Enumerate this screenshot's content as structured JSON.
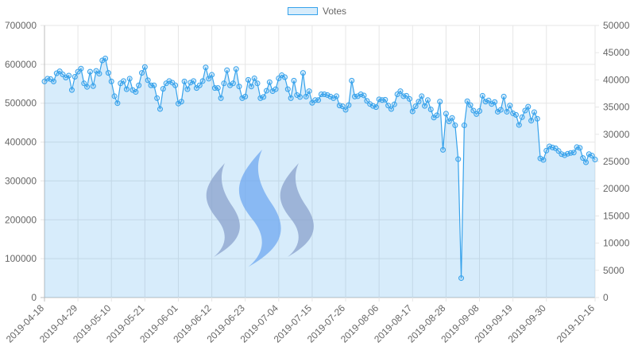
{
  "legend": {
    "label": "Votes",
    "border_color": "#36a2eb",
    "fill_color": "rgba(54,162,235,0.2)"
  },
  "watermark": {
    "icon": "steem-logo-icon",
    "colors": [
      "#8aa2cc",
      "#6fa8f0",
      "#8aa2cc"
    ]
  },
  "chart_data": {
    "type": "area",
    "title": "",
    "xlabel": "",
    "ylabel": "",
    "legend_position": "top-center",
    "grid": true,
    "series": [
      {
        "name": "Votes",
        "color": "#36a2eb",
        "values": [
          556000,
          563000,
          562000,
          556000,
          577000,
          582000,
          574000,
          566000,
          571000,
          534000,
          568000,
          581000,
          589000,
          551000,
          542000,
          581000,
          544000,
          583000,
          576000,
          610000,
          615000,
          578000,
          556000,
          518000,
          500000,
          551000,
          557000,
          536000,
          563000,
          534000,
          529000,
          546000,
          578000,
          593000,
          559000,
          546000,
          546000,
          513000,
          485000,
          537000,
          551000,
          557000,
          553000,
          546000,
          499000,
          504000,
          556000,
          536000,
          553000,
          557000,
          539000,
          546000,
          557000,
          592000,
          563000,
          573000,
          539000,
          539000,
          513000,
          551000,
          585000,
          546000,
          551000,
          588000,
          543000,
          513000,
          517000,
          560000,
          543000,
          564000,
          551000,
          513000,
          516000,
          532000,
          554000,
          531000,
          536000,
          564000,
          572000,
          567000,
          536000,
          513000,
          558000,
          521000,
          516000,
          578000,
          517000,
          531000,
          501000,
          508000,
          508000,
          523000,
          523000,
          521000,
          517000,
          513000,
          518000,
          494000,
          492000,
          483000,
          495000,
          558000,
          517000,
          518000,
          523000,
          520000,
          506000,
          498000,
          493000,
          490000,
          510000,
          508000,
          509000,
          494000,
          485000,
          497000,
          523000,
          531000,
          518000,
          519000,
          511000,
          479000,
          492000,
          504000,
          518000,
          493000,
          508000,
          484000,
          463000,
          469000,
          504000,
          380000,
          473000,
          453000,
          462000,
          443000,
          356000,
          50000,
          443000,
          505000,
          495000,
          481000,
          472000,
          480000,
          519000,
          504000,
          507000,
          498000,
          503000,
          478000,
          483000,
          517000,
          478000,
          494000,
          474000,
          470000,
          444000,
          464000,
          481000,
          491000,
          455000,
          477000,
          460000,
          358000,
          354000,
          378000,
          389000,
          386000,
          384000,
          377000,
          369000,
          366000,
          370000,
          372000,
          373000,
          387000,
          385000,
          359000,
          348000,
          369000,
          365000,
          355000
        ]
      }
    ],
    "x_start": "2019-04-18",
    "x_end": "2019-10-16",
    "x_tick_labels": [
      "2019-04-18",
      "2019-04-29",
      "2019-05-10",
      "2019-05-21",
      "2019-06-01",
      "2019-06-12",
      "2019-06-23",
      "2019-07-04",
      "2019-07-15",
      "2019-07-26",
      "2019-08-06",
      "2019-08-17",
      "2019-08-28",
      "2019-09-08",
      "2019-09-19",
      "2019-09-30",
      "2019-10-16"
    ],
    "y_left": {
      "min": 0,
      "max": 700000,
      "ticks": [
        "0",
        "100000",
        "200000",
        "300000",
        "400000",
        "500000",
        "600000",
        "700000"
      ]
    },
    "y_right": {
      "min": 0,
      "max": 50000,
      "ticks": [
        "0",
        "5000",
        "10000",
        "15000",
        "20000",
        "25000",
        "30000",
        "35000",
        "40000",
        "45000",
        "50000"
      ]
    }
  }
}
